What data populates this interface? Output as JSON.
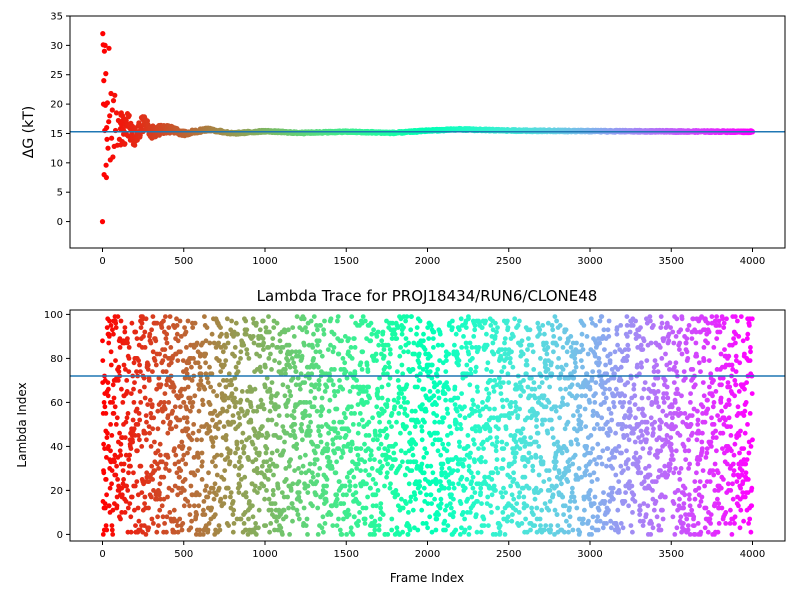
{
  "chart_data": [
    {
      "type": "scatter",
      "title": "",
      "xlabel": "",
      "ylabel": "ΔG (kT)",
      "xlim": [
        -200,
        4200
      ],
      "ylim": [
        -4.5,
        35
      ],
      "x_ticks": [
        0,
        500,
        1000,
        1500,
        2000,
        2500,
        3000,
        3500,
        4000
      ],
      "y_ticks": [
        0,
        5,
        10,
        15,
        20,
        25,
        30,
        35
      ],
      "reference_line": 15.3,
      "colormap": "rainbow-reversed",
      "series": [
        {
          "values_description_free": true,
          "x_range": [
            0,
            4000
          ],
          "converged_value": 15.3,
          "early_points": [
            [
              0,
              0
            ],
            [
              2,
              32
            ],
            [
              4,
              30.1
            ],
            [
              6,
              20
            ],
            [
              8,
              24
            ],
            [
              10,
              8
            ],
            [
              12,
              29
            ],
            [
              14,
              15.5
            ],
            [
              16,
              30
            ],
            [
              18,
              19.8
            ],
            [
              20,
              25.2
            ],
            [
              22,
              9.6
            ],
            [
              24,
              7.5
            ],
            [
              26,
              16
            ],
            [
              28,
              14
            ],
            [
              30,
              20.2
            ],
            [
              34,
              12.5
            ],
            [
              38,
              17
            ],
            [
              40,
              29.5
            ],
            [
              44,
              18
            ],
            [
              48,
              10.5
            ],
            [
              52,
              21.8
            ],
            [
              56,
              14.2
            ],
            [
              60,
              19
            ],
            [
              64,
              11
            ],
            [
              68,
              20.6
            ],
            [
              72,
              12.8
            ],
            [
              76,
              21.5
            ],
            [
              80,
              15.5
            ],
            [
              86,
              18.5
            ],
            [
              92,
              13
            ],
            [
              98,
              17.2
            ],
            [
              104,
              14
            ],
            [
              110,
              16.8
            ]
          ],
          "drift_points": [
            [
              150,
              17.5
            ],
            [
              200,
              14.5
            ],
            [
              250,
              16.8
            ],
            [
              300,
              15.2
            ],
            [
              400,
              15.8
            ],
            [
              500,
              15.0
            ],
            [
              650,
              15.7
            ],
            [
              800,
              15.0
            ],
            [
              1000,
              15.4
            ],
            [
              1200,
              15.1
            ],
            [
              1500,
              15.3
            ],
            [
              1800,
              15.1
            ],
            [
              2000,
              15.5
            ],
            [
              2200,
              15.7
            ],
            [
              2500,
              15.5
            ],
            [
              3000,
              15.4
            ],
            [
              3500,
              15.35
            ],
            [
              4000,
              15.3
            ]
          ]
        }
      ]
    },
    {
      "type": "scatter",
      "title": "Lambda Trace for PROJ18434/RUN6/CLONE48",
      "xlabel": "Frame Index",
      "ylabel": "Lambda Index",
      "xlim": [
        -200,
        4200
      ],
      "ylim": [
        -3,
        102
      ],
      "x_ticks": [
        0,
        500,
        1000,
        1500,
        2000,
        2500,
        3000,
        3500,
        4000
      ],
      "y_ticks": [
        0,
        20,
        40,
        60,
        80,
        100
      ],
      "reference_line": 72,
      "colormap": "rainbow-reversed",
      "series": [
        {
          "x_range": [
            0,
            4000
          ],
          "y_range": [
            0,
            99
          ],
          "point_count": 4000
        }
      ]
    }
  ]
}
